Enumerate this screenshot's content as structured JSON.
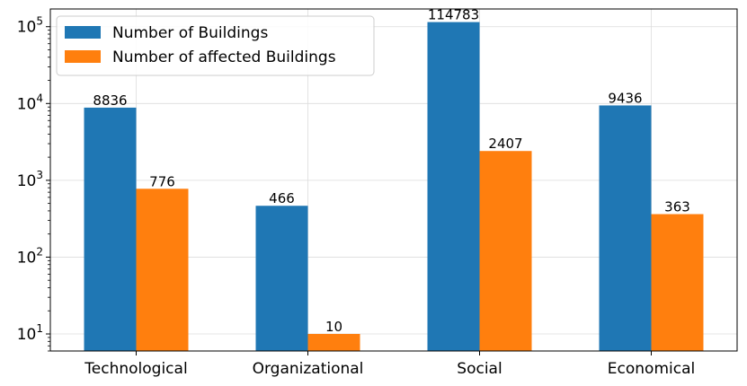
{
  "chart_data": {
    "type": "bar",
    "categories": [
      "Technological",
      "Organizational",
      "Social",
      "Economical"
    ],
    "series": [
      {
        "name": "Number of Buildings",
        "values": [
          8836,
          466,
          114783,
          9436
        ],
        "color": "#1f77b4"
      },
      {
        "name": "Number of affected Buildings",
        "values": [
          776,
          10,
          2407,
          363
        ],
        "color": "#ff7f0e"
      }
    ],
    "title": "",
    "xlabel": "",
    "ylabel": "",
    "yscale": "log",
    "ylim": [
      6,
      170000
    ],
    "yticks": [
      {
        "value": 10,
        "base": "10",
        "exp": "1"
      },
      {
        "value": 100,
        "base": "10",
        "exp": "2"
      },
      {
        "value": 1000,
        "base": "10",
        "exp": "3"
      },
      {
        "value": 10000,
        "base": "10",
        "exp": "4"
      },
      {
        "value": 100000,
        "base": "10",
        "exp": "5"
      }
    ],
    "grid": true,
    "legend_position": "top-left"
  }
}
